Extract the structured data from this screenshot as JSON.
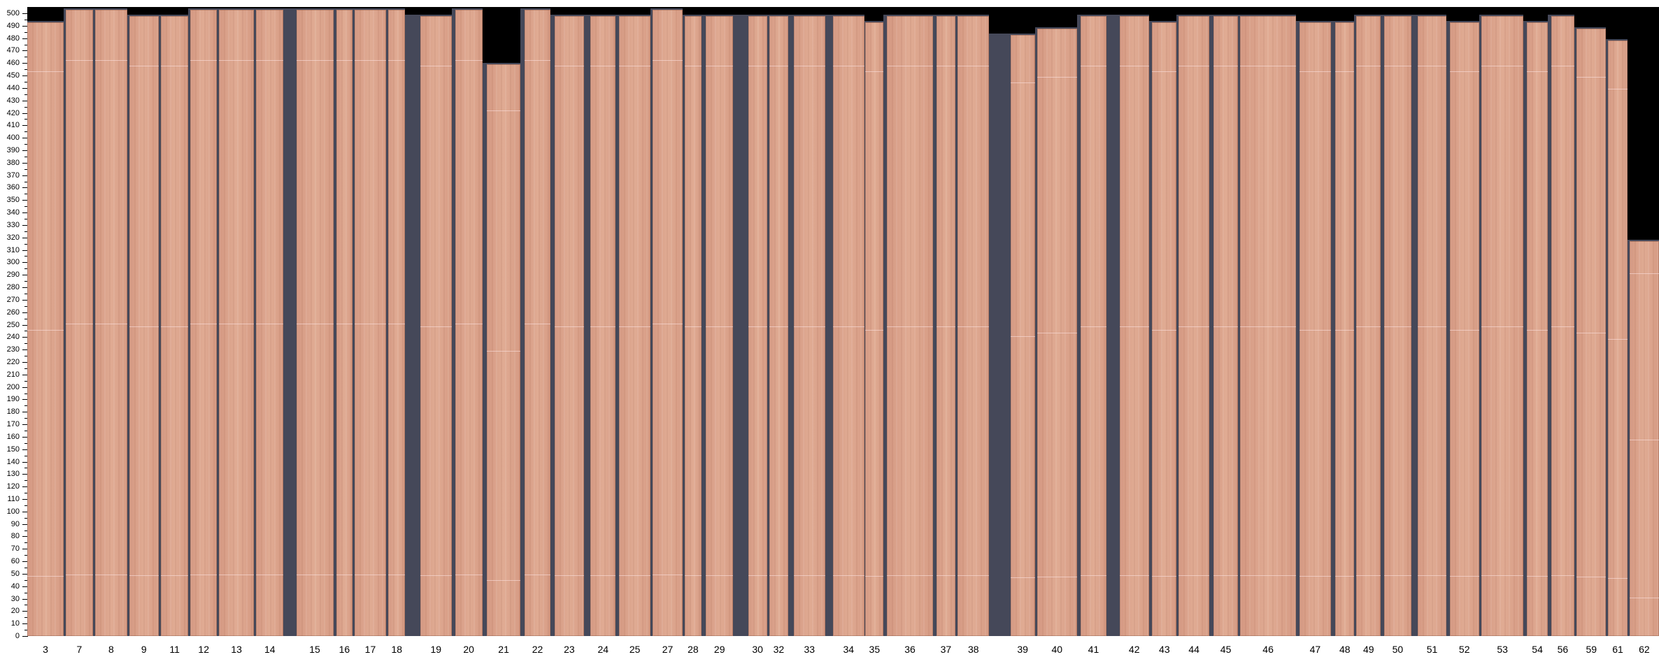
{
  "y_axis": {
    "min": 0,
    "max": 500,
    "step": 10
  },
  "colors": {
    "wood": "#dba48c",
    "gap": "#454859",
    "background": "#000000"
  },
  "planks": [
    {
      "label": "3",
      "top": 494
    },
    {
      "label": "7",
      "top": 504
    },
    {
      "label": "8",
      "top": 504
    },
    {
      "label": "9",
      "top": 499
    },
    {
      "label": "11",
      "top": 499
    },
    {
      "label": "12",
      "top": 504
    },
    {
      "label": "13",
      "top": 504
    },
    {
      "label": "14",
      "top": 504
    },
    {
      "label": "15",
      "top": 504
    },
    {
      "label": "16",
      "top": 504
    },
    {
      "label": "17",
      "top": 504
    },
    {
      "label": "18",
      "top": 504
    },
    {
      "label": "19",
      "top": 499
    },
    {
      "label": "20",
      "top": 504
    },
    {
      "label": "21",
      "top": 460
    },
    {
      "label": "22",
      "top": 504
    },
    {
      "label": "23",
      "top": 499
    },
    {
      "label": "24",
      "top": 499
    },
    {
      "label": "25",
      "top": 499
    },
    {
      "label": "27",
      "top": 504
    },
    {
      "label": "28",
      "top": 499
    },
    {
      "label": "29",
      "top": 499
    },
    {
      "label": "30",
      "top": 499
    },
    {
      "label": "32",
      "top": 499
    },
    {
      "label": "33",
      "top": 499
    },
    {
      "label": "34",
      "top": 499
    },
    {
      "label": "35",
      "top": 494
    },
    {
      "label": "36",
      "top": 499
    },
    {
      "label": "37",
      "top": 499
    },
    {
      "label": "38",
      "top": 499
    },
    {
      "label": "39",
      "top": 484
    },
    {
      "label": "40",
      "top": 489
    },
    {
      "label": "41",
      "top": 499
    },
    {
      "label": "42",
      "top": 499
    },
    {
      "label": "43",
      "top": 494
    },
    {
      "label": "44",
      "top": 499
    },
    {
      "label": "45",
      "top": 499
    },
    {
      "label": "46",
      "top": 499
    },
    {
      "label": "47",
      "top": 494
    },
    {
      "label": "48",
      "top": 494
    },
    {
      "label": "49",
      "top": 499
    },
    {
      "label": "50",
      "top": 499
    },
    {
      "label": "51",
      "top": 499
    },
    {
      "label": "52",
      "top": 494
    },
    {
      "label": "53",
      "top": 499
    },
    {
      "label": "54",
      "top": 494
    },
    {
      "label": "56",
      "top": 499
    },
    {
      "label": "59",
      "top": 489
    },
    {
      "label": "61",
      "top": 479
    },
    {
      "label": "62",
      "top": 318
    }
  ]
}
